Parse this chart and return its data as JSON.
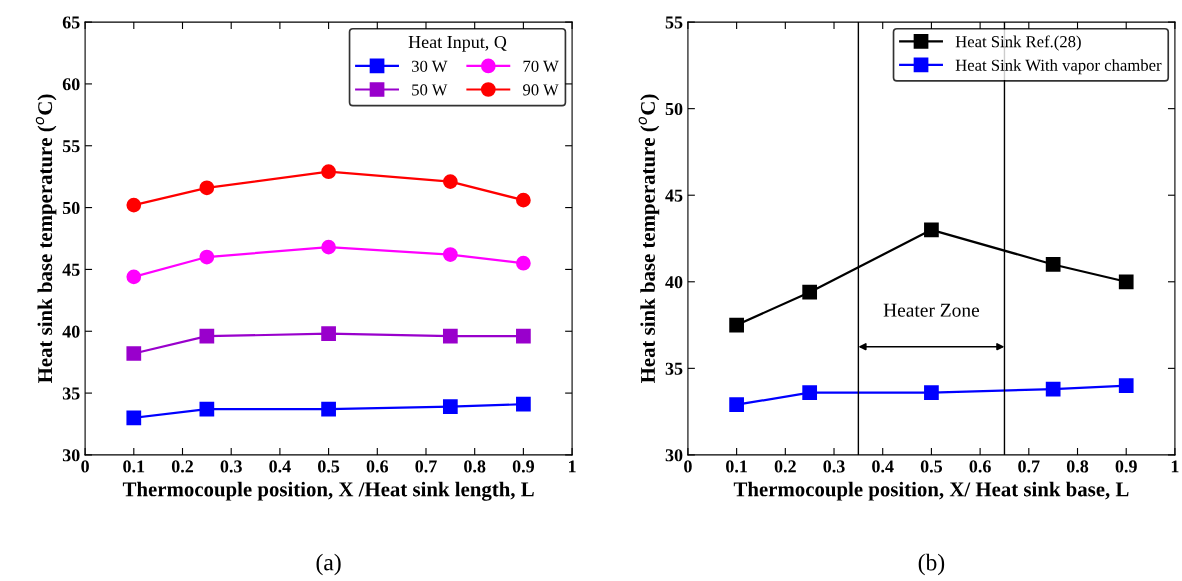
{
  "chart_data": [
    {
      "type": "line",
      "xlabel": "Thermocouple position, X /Heat sink length, L",
      "ylabel": "Heat sink base temperature ($^{o}$C)",
      "legend_title": "Heat Input, Q",
      "legend": "top right",
      "grid": false,
      "x": [
        0.1,
        0.25,
        0.5,
        0.75,
        0.9
      ],
      "xlim": [
        0,
        1
      ],
      "xticks": [
        0,
        0.1,
        0.2,
        0.3,
        0.4,
        0.5,
        0.6,
        0.7,
        0.8,
        0.9,
        1
      ],
      "ylim": [
        30,
        65
      ],
      "yticks": [
        30,
        35,
        40,
        45,
        50,
        55,
        60,
        65
      ],
      "series": [
        {
          "name": "30 W",
          "color": "#0000ff",
          "marker": "square",
          "values": [
            33.0,
            33.7,
            33.7,
            33.9,
            34.1
          ]
        },
        {
          "name": "50 W",
          "color": "#9900cc",
          "marker": "square",
          "values": [
            38.2,
            39.6,
            39.8,
            39.6,
            39.6
          ]
        },
        {
          "name": "70 W",
          "color": "#ff00ff",
          "marker": "circle",
          "values": [
            44.4,
            46.0,
            46.8,
            46.2,
            45.5
          ]
        },
        {
          "name": "90 W",
          "color": "#ff0000",
          "marker": "circle",
          "values": [
            50.2,
            51.6,
            52.9,
            52.1,
            50.6
          ]
        }
      ],
      "annotations": [
        "(a)"
      ]
    },
    {
      "type": "line",
      "xlabel": "Thermocouple position, X/ Heat sink base, L",
      "ylabel": "Heat sink base temperature ($^{o}$C)",
      "legend": "top right",
      "grid": false,
      "x": [
        0.1,
        0.25,
        0.5,
        0.75,
        0.9
      ],
      "xlim": [
        0,
        1
      ],
      "xticks": [
        0,
        0.1,
        0.2,
        0.3,
        0.4,
        0.5,
        0.6,
        0.7,
        0.8,
        0.9,
        1
      ],
      "ylim": [
        30,
        55
      ],
      "yticks": [
        30,
        35,
        40,
        45,
        50,
        55
      ],
      "series": [
        {
          "name": "Heat Sink Ref.(28)",
          "color": "#000000",
          "marker": "square",
          "values": [
            37.5,
            39.4,
            43.0,
            41.0,
            40.0
          ]
        },
        {
          "name": "Heat Sink With vapor chamber",
          "color": "#0000ff",
          "marker": "square",
          "values": [
            32.9,
            33.6,
            33.6,
            33.8,
            34.0
          ]
        }
      ],
      "ref_lines": [
        {
          "axis": "x",
          "value": 0.35,
          "color": "#000000"
        },
        {
          "axis": "x",
          "value": 0.65,
          "color": "#000000"
        }
      ],
      "annotations": [
        "Heater Zone",
        "(b)"
      ]
    }
  ]
}
